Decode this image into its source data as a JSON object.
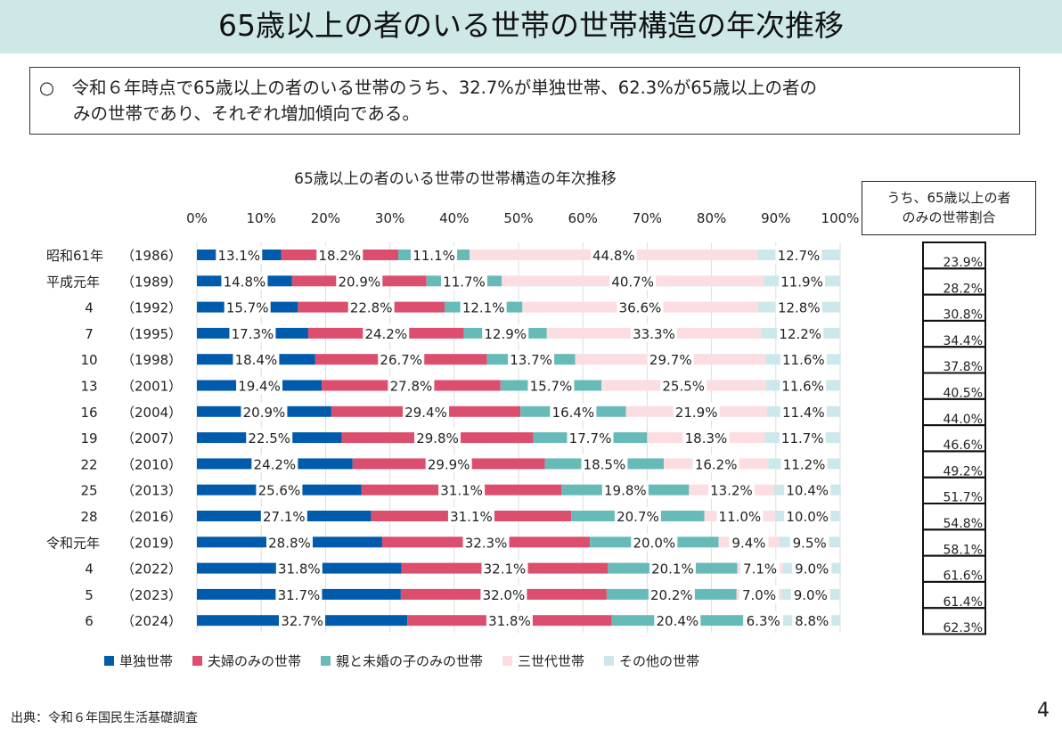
{
  "header": {
    "title": "65歳以上の者のいる世帯の世帯構造の年次推移"
  },
  "note": {
    "bullet": "○",
    "line1": "令和６年時点で65歳以上の者のいる世帯のうち、32.7%が単独世帯、62.3%が65歳以上の者の",
    "line2": "みの世帯であり、それぞれ増加傾向である。"
  },
  "footer": {
    "source": "出典：令和６年国民生活基礎調査",
    "page": "4"
  },
  "chart_data": {
    "type": "bar",
    "orientation": "horizontal",
    "stacked": "percent",
    "title": "65歳以上の者のいる世帯の世帯構造の年次推移",
    "xlim": [
      0,
      100
    ],
    "xticks": [
      "0%",
      "10%",
      "20%",
      "30%",
      "40%",
      "50%",
      "60%",
      "70%",
      "80%",
      "90%",
      "100%"
    ],
    "grid": true,
    "legend": "bottom",
    "categories": [
      [
        "昭和61年",
        "（1986）"
      ],
      [
        "平成元年",
        "（1989）"
      ],
      [
        "4",
        "（1992）"
      ],
      [
        "7",
        "（1995）"
      ],
      [
        "10",
        "（1998）"
      ],
      [
        "13",
        "（2001）"
      ],
      [
        "16",
        "（2004）"
      ],
      [
        "19",
        "（2007）"
      ],
      [
        "22",
        "（2010）"
      ],
      [
        "25",
        "（2013）"
      ],
      [
        "28",
        "（2016）"
      ],
      [
        "令和元年",
        "（2019）"
      ],
      [
        "4",
        "（2022）"
      ],
      [
        "5",
        "（2023）"
      ],
      [
        "6",
        "（2024）"
      ]
    ],
    "series": [
      {
        "name": "単独世帯",
        "color": "#005bac",
        "values": [
          13.1,
          14.8,
          15.7,
          17.3,
          18.4,
          19.4,
          20.9,
          22.5,
          24.2,
          25.6,
          27.1,
          28.8,
          31.8,
          31.7,
          32.7
        ]
      },
      {
        "name": "夫婦のみの世帯",
        "color": "#dc4e6e",
        "values": [
          18.2,
          20.9,
          22.8,
          24.2,
          26.7,
          27.8,
          29.4,
          29.8,
          29.9,
          31.1,
          31.1,
          32.3,
          32.1,
          32.0,
          31.8
        ]
      },
      {
        "name": "親と未婚の子のみの世帯",
        "color": "#66bbb8",
        "values": [
          11.1,
          11.7,
          12.1,
          12.9,
          13.7,
          15.7,
          16.4,
          17.7,
          18.5,
          19.8,
          20.7,
          20.0,
          20.1,
          20.2,
          20.4
        ]
      },
      {
        "name": "三世代世帯",
        "color": "#fcdde2",
        "values": [
          44.8,
          40.7,
          36.6,
          33.3,
          29.7,
          25.5,
          21.9,
          18.3,
          16.2,
          13.2,
          11.0,
          9.4,
          7.1,
          7.0,
          6.3
        ]
      },
      {
        "name": "その他の世帯",
        "color": "#cde8ec",
        "values": [
          12.7,
          11.9,
          12.8,
          12.2,
          11.6,
          11.6,
          11.4,
          11.7,
          11.2,
          10.4,
          10.0,
          9.5,
          9.0,
          9.0,
          8.8
        ]
      }
    ],
    "side_table": {
      "header": [
        "うち、65歳以上の者",
        "のみの世帯割合"
      ],
      "values": [
        "23.9%",
        "28.2%",
        "30.8%",
        "34.4%",
        "37.8%",
        "40.5%",
        "44.0%",
        "46.6%",
        "49.2%",
        "51.7%",
        "54.8%",
        "58.1%",
        "61.6%",
        "61.4%",
        "62.3%"
      ]
    }
  }
}
